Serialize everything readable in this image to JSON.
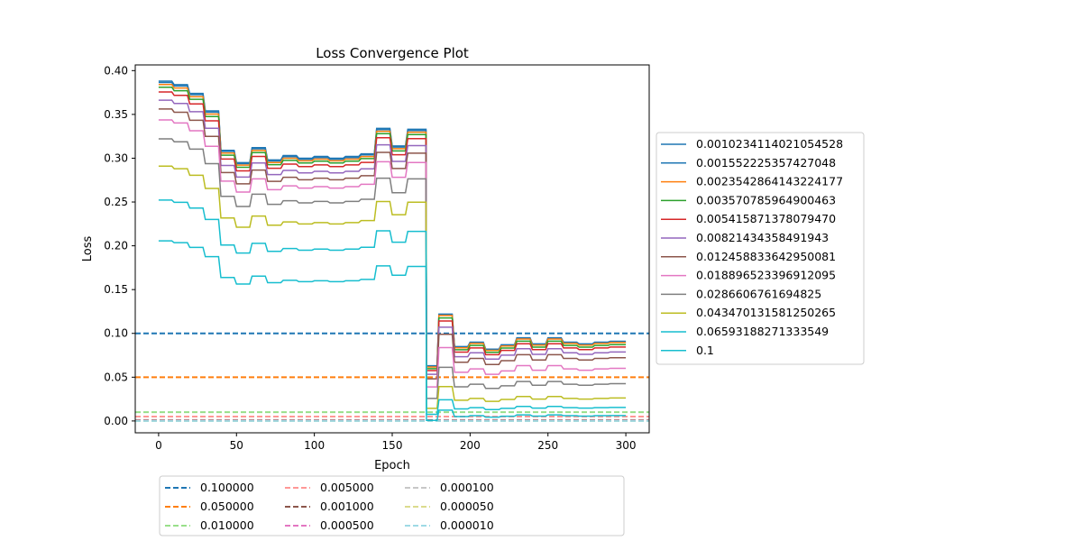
{
  "chart_data": {
    "type": "line",
    "title": "Loss Convergence Plot",
    "xlabel": "Epoch",
    "ylabel": "Loss",
    "xlim": [
      -15,
      315
    ],
    "ylim": [
      -0.0135,
      0.4065
    ],
    "xticks": [
      0,
      50,
      100,
      150,
      200,
      250,
      300
    ],
    "yticks": [
      0.0,
      0.05,
      0.1,
      0.15,
      0.2,
      0.25,
      0.3,
      0.35,
      0.4
    ],
    "grid": false,
    "legend_position": "right",
    "loss_series": [
      {
        "name": "0.0010234114021054528",
        "color": "#1f77b4",
        "y_scale": 1.0,
        "y_offset": 0.0,
        "post_scale": 1.0,
        "post_offset": 0.0
      },
      {
        "name": "0.001552225357427048",
        "color": "#1f77b4",
        "y_scale": 0.996,
        "y_offset": 0.0,
        "post_scale": 1.0,
        "post_offset": -0.001
      },
      {
        "name": "0.0023542864143224177",
        "color": "#ff7f0e",
        "y_scale": 0.99,
        "y_offset": 0.0,
        "post_scale": 0.995,
        "post_offset": -0.001
      },
      {
        "name": "0.003570785964900463",
        "color": "#2ca02c",
        "y_scale": 0.982,
        "y_offset": 0.0,
        "post_scale": 0.98,
        "post_offset": -0.002
      },
      {
        "name": "0.005415871378079470",
        "color": "#d62728",
        "y_scale": 0.968,
        "y_offset": 0.0,
        "post_scale": 0.96,
        "post_offset": -0.003
      },
      {
        "name": "0.00821434358491943",
        "color": "#9467bd",
        "y_scale": 0.944,
        "y_offset": 0.0,
        "post_scale": 0.91,
        "post_offset": -0.004
      },
      {
        "name": "0.012458833642950081",
        "color": "#8c564b",
        "y_scale": 0.918,
        "y_offset": 0.0,
        "post_scale": 0.86,
        "post_offset": -0.006
      },
      {
        "name": "0.018896523396912095",
        "color": "#e377c2",
        "y_scale": 0.886,
        "y_offset": 0.0,
        "post_scale": 0.76,
        "post_offset": -0.009
      },
      {
        "name": "0.0286606761694825",
        "color": "#7f7f7f",
        "y_scale": 0.83,
        "y_offset": 0.0,
        "post_scale": 0.6,
        "post_offset": -0.012
      },
      {
        "name": "0.043470131581250265",
        "color": "#bcbd22",
        "y_scale": 0.75,
        "y_offset": 0.0,
        "post_scale": 0.42,
        "post_offset": -0.012
      },
      {
        "name": "0.06593188271333549",
        "color": "#17becf",
        "y_scale": 0.65,
        "y_offset": 0.0,
        "post_scale": 0.28,
        "post_offset": -0.01
      },
      {
        "name": "0.1",
        "color": "#17becf",
        "y_scale": 0.53,
        "y_offset": 0.0,
        "post_scale": 0.2,
        "post_offset": -0.012
      }
    ],
    "base_curve": {
      "x": [
        0,
        10,
        20,
        30,
        40,
        50,
        60,
        70,
        80,
        90,
        100,
        110,
        120,
        130,
        140,
        150,
        160,
        170,
        172,
        180,
        190,
        200,
        210,
        220,
        230,
        240,
        250,
        260,
        270,
        280,
        290,
        300
      ],
      "y": [
        0.388,
        0.384,
        0.374,
        0.354,
        0.309,
        0.295,
        0.312,
        0.298,
        0.303,
        0.3,
        0.302,
        0.3,
        0.302,
        0.305,
        0.334,
        0.314,
        0.333,
        0.333,
        0.063,
        0.122,
        0.085,
        0.09,
        0.082,
        0.087,
        0.095,
        0.088,
        0.095,
        0.09,
        0.088,
        0.09,
        0.091,
        0.091
      ]
    },
    "threshold_lines": [
      {
        "name": "0.100000",
        "y": 0.1,
        "color": "#1f77b4"
      },
      {
        "name": "0.050000",
        "y": 0.05,
        "color": "#ff7f0e"
      },
      {
        "name": "0.010000",
        "y": 0.01,
        "color": "#98df8a"
      },
      {
        "name": "0.005000",
        "y": 0.005,
        "color": "#ff9896"
      },
      {
        "name": "0.001000",
        "y": 0.001,
        "color": "#8c564b"
      },
      {
        "name": "0.000500",
        "y": 0.0005,
        "color": "#e377c2"
      },
      {
        "name": "0.000100",
        "y": 0.0001,
        "color": "#c7c7c7"
      },
      {
        "name": "0.000050",
        "y": 5e-05,
        "color": "#dbdb8d"
      },
      {
        "name": "0.000010",
        "y": 1e-05,
        "color": "#9edae5"
      }
    ]
  }
}
